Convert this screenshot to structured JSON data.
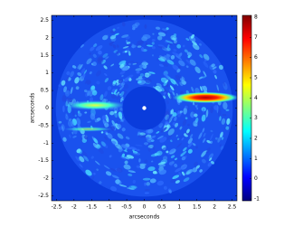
{
  "chart_data": {
    "type": "heatmap",
    "x_label": "arcseconds",
    "y_label": "arcseconds",
    "xlim": [
      -2.64,
      2.64
    ],
    "ylim": [
      -2.64,
      2.64
    ],
    "xticks": [
      -2.5,
      -2,
      -1.5,
      -1,
      -0.5,
      0,
      0.5,
      1,
      1.5,
      2,
      2.5
    ],
    "yticks": [
      -2.5,
      -2,
      -1.5,
      -1,
      -0.5,
      0,
      0.5,
      1,
      1.5,
      2,
      2.5
    ],
    "colorbar": {
      "lim": [
        -1,
        8
      ],
      "ticks": [
        -1,
        0,
        1,
        2,
        3,
        4,
        5,
        6,
        7,
        8
      ]
    }
  }
}
